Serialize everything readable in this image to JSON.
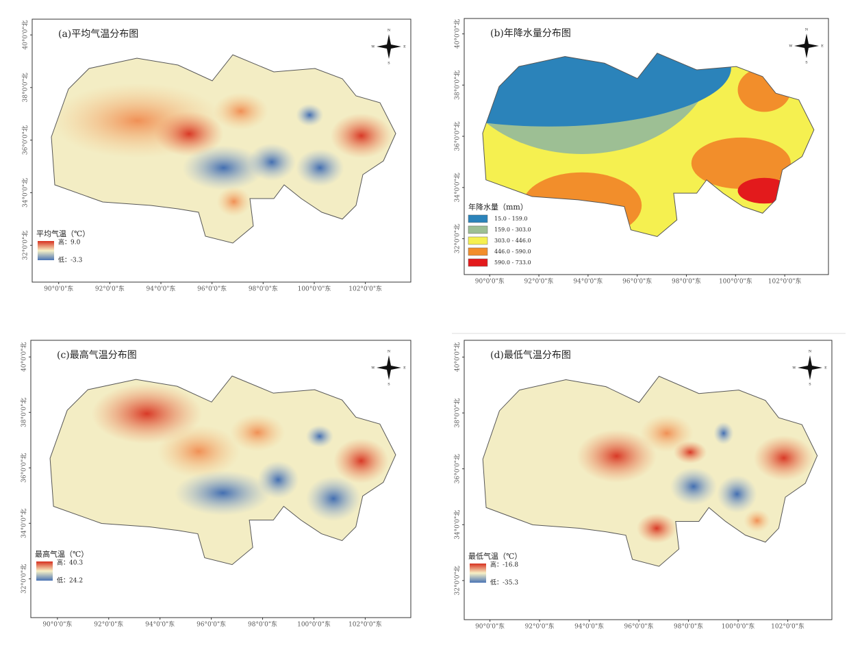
{
  "panels": [
    {
      "title": "(a)平均气温分布图",
      "legend_title": "平均气温（℃）",
      "legend_high": "高：9.0",
      "legend_low": "低：-3.3",
      "x_labels": [
        "90°0'0\"东",
        "92°0'0\"东",
        "94°0'0\"东",
        "96°0'0\"东",
        "98°0'0\"东",
        "100°0'0\"东",
        "102°0'0\"东"
      ],
      "y_labels": [
        "40°0'0\"北",
        "38°0'0\"北",
        "36°0'0\"北",
        "34°0'0\"北",
        "32°0'0\"北"
      ],
      "compass": [
        "N",
        "E",
        "S",
        "W"
      ]
    },
    {
      "title": "(b)年降水量分布图",
      "legend_title": "年降水量（mm）",
      "legend_items": [
        {
          "label": "15.0 - 159.0",
          "color": "#2b83ba"
        },
        {
          "label": "159.0 - 303.0",
          "color": "#9dbf94"
        },
        {
          "label": "303.0 - 446.0",
          "color": "#f5f050"
        },
        {
          "label": "446.0 - 590.0",
          "color": "#f28e2b"
        },
        {
          "label": "590.0 - 733.0",
          "color": "#e31a1c"
        }
      ],
      "x_labels": [
        "90°0'0\"东",
        "92°0'0\"东",
        "94°0'0\"东",
        "96°0'0\"东",
        "98°0'0\"东",
        "100°0'0\"东",
        "102°0'0\"东"
      ],
      "y_labels": [
        "40°0'0\"北",
        "38°0'0\"北",
        "36°0'0\"北",
        "34°0'0\"北",
        "32°0'0\"北"
      ],
      "compass": [
        "N",
        "E",
        "S",
        "W"
      ]
    },
    {
      "title": "(c)最高气温分布图",
      "legend_title": "最高气温（℃）",
      "legend_high": "高：40.3",
      "legend_low": "低：24.2",
      "x_labels": [
        "90°0'0\"东",
        "92°0'0\"东",
        "94°0'0\"东",
        "96°0'0\"东",
        "98°0'0\"东",
        "100°0'0\"东",
        "102°0'0\"东"
      ],
      "y_labels": [
        "40°0'0\"北",
        "38°0'0\"北",
        "36°0'0\"北",
        "34°0'0\"北",
        "32°0'0\"北"
      ],
      "compass": [
        "N",
        "E",
        "S",
        "W"
      ]
    },
    {
      "title": "(d)最低气温分布图",
      "legend_title": "最低气温（℃）",
      "legend_high": "高：-16.8",
      "legend_low": "低：-35.3",
      "x_labels": [
        "90°0'0\"东",
        "92°0'0\"东",
        "94°0'0\"东",
        "96°0'0\"东",
        "98°0'0\"东",
        "100°0'0\"东",
        "102°0'0\"东"
      ],
      "y_labels": [
        "40°0'0\"北",
        "38°0'0\"北",
        "36°0'0\"北",
        "34°0'0\"北",
        "32°0'0\"北"
      ],
      "compass": [
        "N",
        "E",
        "S",
        "W"
      ]
    }
  ]
}
